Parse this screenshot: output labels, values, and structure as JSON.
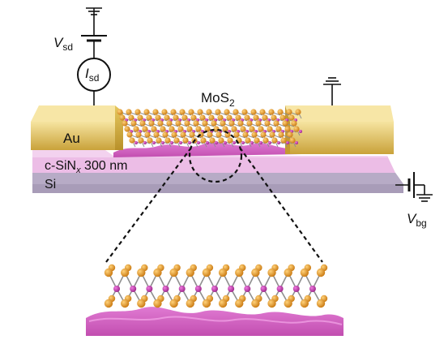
{
  "labels": {
    "vsd_main": "V",
    "vsd_sub": "sd",
    "isd_main": "I",
    "isd_sub": "sd",
    "mos2_main": "MoS",
    "mos2_sub": "2",
    "au": "Au",
    "sin_prefix": "c-SiN",
    "sin_sub": "x",
    "sin_suffix": " 300 nm",
    "si": "Si",
    "vbg_main": "V",
    "vbg_sub": "bg"
  },
  "colors": {
    "gold_light": "#f4dc8e",
    "gold_dark": "#c9a437",
    "nitride": "#eab7e3",
    "nitride_dark": "#d690cc",
    "silicon": "#a69ab5",
    "silicon_dark": "#8a7e9c",
    "membrane": "#d86cc8",
    "sulfur": "#e0901a",
    "molybdenum": "#c23aa8",
    "bond": "#8f8f8f",
    "wire": "#111111"
  }
}
